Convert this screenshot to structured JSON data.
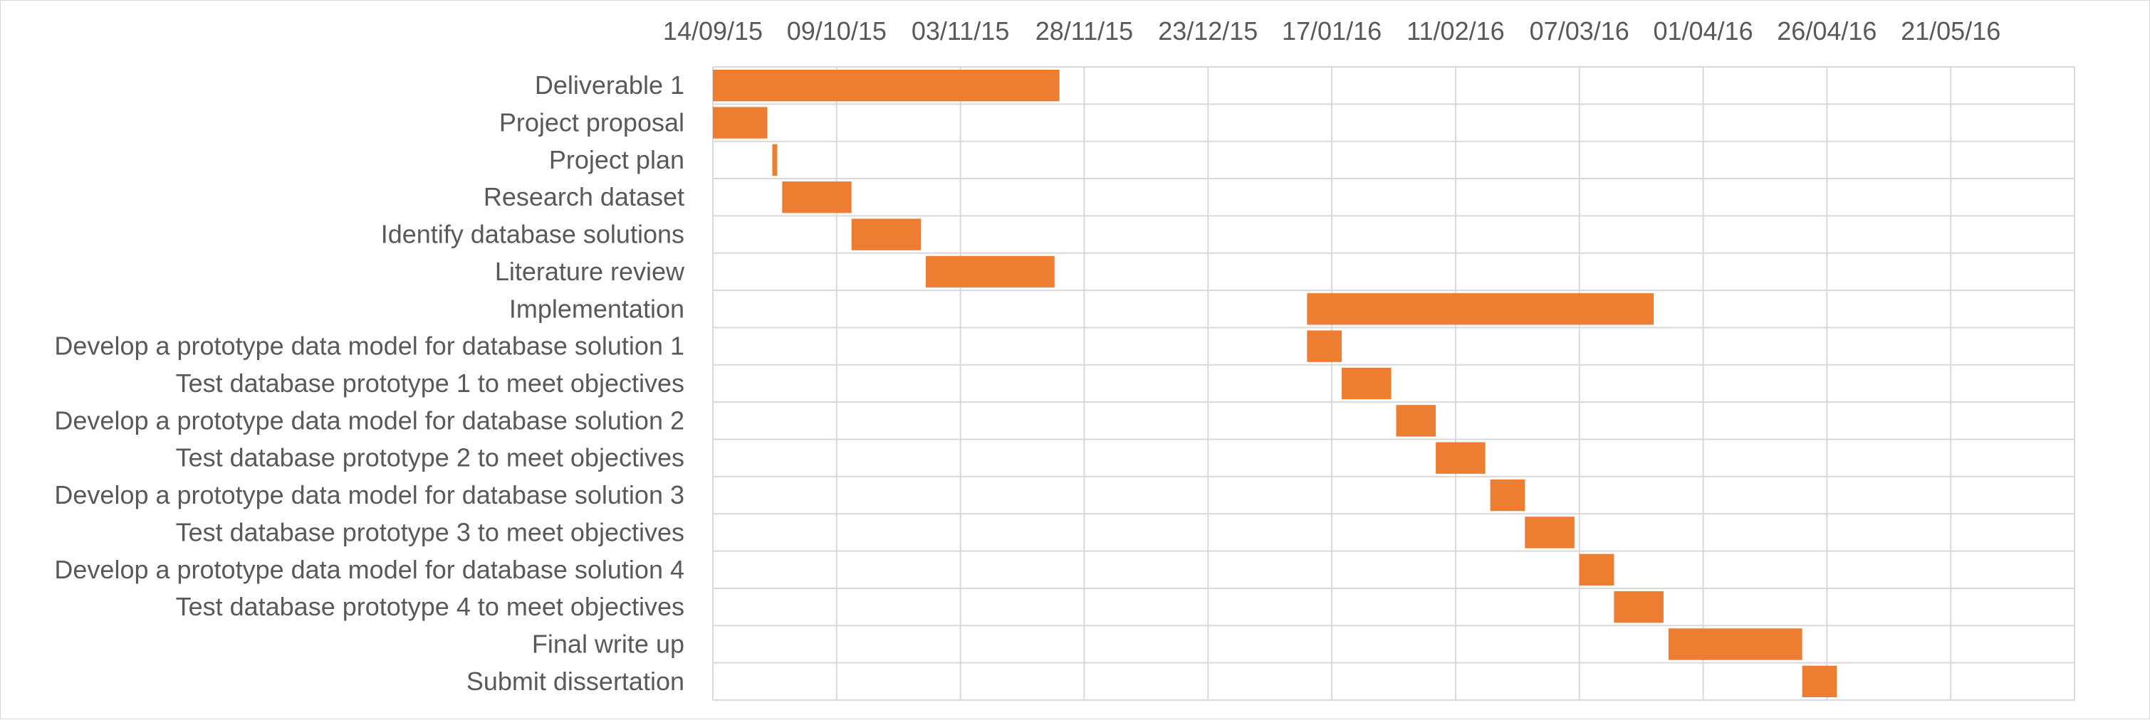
{
  "chart_data": {
    "type": "bar",
    "orientation": "horizontal",
    "title": "",
    "xlabel": "",
    "ylabel": "",
    "xlim": [
      "2015-09-14",
      "2016-06-15"
    ],
    "x_ticks": [
      "14/09/15",
      "09/10/15",
      "03/11/15",
      "28/11/15",
      "23/12/15",
      "17/01/16",
      "11/02/16",
      "07/03/16",
      "01/04/16",
      "26/04/16",
      "21/05/16"
    ],
    "x_tick_dates": [
      "2015-09-14",
      "2015-10-09",
      "2015-11-03",
      "2015-11-28",
      "2015-12-23",
      "2016-01-17",
      "2016-02-11",
      "2016-03-07",
      "2016-04-01",
      "2016-04-26",
      "2016-05-21"
    ],
    "grid": true,
    "legend": "none",
    "bar_color": "#ED7D31",
    "tasks": [
      {
        "name": "Deliverable 1",
        "start": "2015-09-14",
        "end": "2015-11-23"
      },
      {
        "name": "Project proposal",
        "start": "2015-09-14",
        "end": "2015-09-25"
      },
      {
        "name": "Project plan",
        "start": "2015-09-26",
        "end": "2015-09-27"
      },
      {
        "name": "Research dataset",
        "start": "2015-09-28",
        "end": "2015-10-12"
      },
      {
        "name": "Identify database solutions",
        "start": "2015-10-12",
        "end": "2015-10-26"
      },
      {
        "name": "Literature review",
        "start": "2015-10-27",
        "end": "2015-11-22"
      },
      {
        "name": "Implementation",
        "start": "2016-01-12",
        "end": "2016-03-22"
      },
      {
        "name": "Develop a prototype data model for database solution 1",
        "start": "2016-01-12",
        "end": "2016-01-19"
      },
      {
        "name": "Test database prototype 1 to meet objectives",
        "start": "2016-01-19",
        "end": "2016-01-29"
      },
      {
        "name": "Develop a prototype data model for database solution 2",
        "start": "2016-01-30",
        "end": "2016-02-07"
      },
      {
        "name": "Test database prototype 2 to meet objectives",
        "start": "2016-02-07",
        "end": "2016-02-17"
      },
      {
        "name": "Develop a prototype data model for database solution 3",
        "start": "2016-02-18",
        "end": "2016-02-25"
      },
      {
        "name": "Test database prototype 3 to meet objectives",
        "start": "2016-02-25",
        "end": "2016-03-06"
      },
      {
        "name": "Develop a prototype data model for database solution 4",
        "start": "2016-03-07",
        "end": "2016-03-14"
      },
      {
        "name": "Test database prototype 4 to meet objectives",
        "start": "2016-03-14",
        "end": "2016-03-24"
      },
      {
        "name": "Final write up",
        "start": "2016-03-25",
        "end": "2016-04-21"
      },
      {
        "name": "Submit dissertation",
        "start": "2016-04-21",
        "end": "2016-04-28"
      }
    ]
  }
}
